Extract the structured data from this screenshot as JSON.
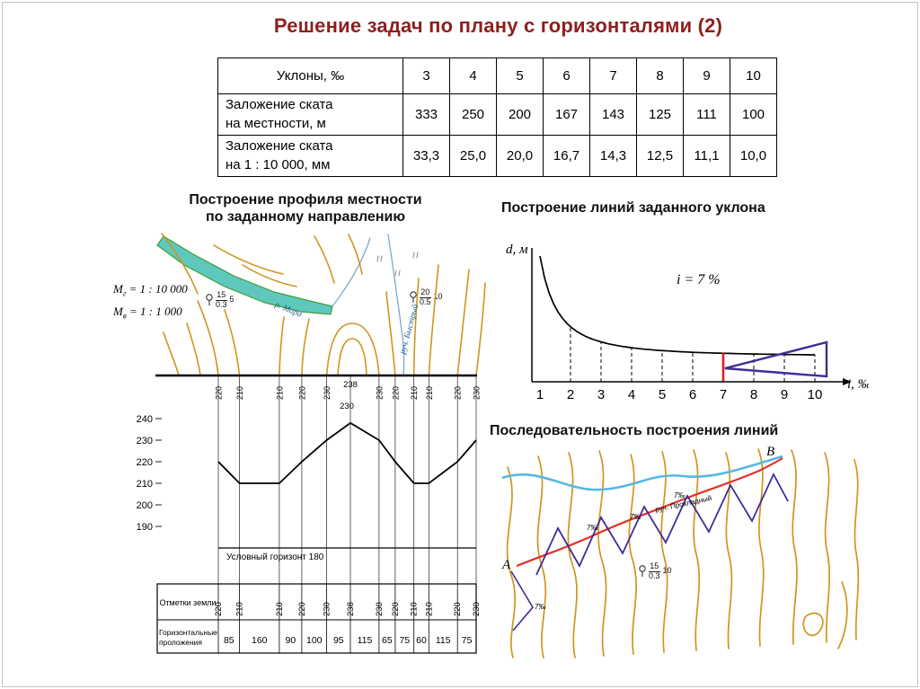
{
  "title": "Решение задач по плану с горизонталями (2)",
  "slope_table": {
    "header_label": "Уклоны, ‰",
    "columns": [
      "3",
      "4",
      "5",
      "6",
      "7",
      "8",
      "9",
      "10"
    ],
    "rows": [
      {
        "label": "Заложение ската\nна местности, м",
        "values": [
          "333",
          "250",
          "200",
          "167",
          "143",
          "125",
          "111",
          "100"
        ]
      },
      {
        "label": "Заложение ската\nна 1 : 10 000, мм",
        "values": [
          "33,3",
          "25,0",
          "20,0",
          "16,7",
          "14,3",
          "12,5",
          "11,1",
          "10,0"
        ]
      }
    ]
  },
  "left_figure": {
    "heading_line1": "Построение профиля местности",
    "heading_line2": "по заданному направлению",
    "scale1": {
      "sym": "М",
      "sub": "г",
      "val": "= 1 : 10 000"
    },
    "scale2": {
      "sym": "М",
      "sub": "в",
      "val": "= 1 : 1 000"
    },
    "river_label": "р. Мара",
    "stream_label": "руч. Быстрый",
    "forest1": {
      "num": "15",
      "den": "0.3",
      "side": "5"
    },
    "forest2": {
      "num": "20",
      "den": "0.5",
      "side": "10"
    },
    "peak_label": "238",
    "peak_lower_label": "230",
    "horizon_label": "Условный горизонт 180",
    "table": {
      "row1_label": "Отметки земли",
      "row2_label_line1": "Горизонтальные",
      "row2_label_line2": "проложения"
    }
  },
  "slope_chart": {
    "heading": "Построение линий заданного уклона",
    "ylabel": "d, м",
    "xlabel": "i, ‰",
    "annotation": "i = 7 %"
  },
  "sequence_map": {
    "heading": "Последовательность построения линий",
    "point_a": "A",
    "point_b": "B",
    "stream_label": "руч. Прохладный",
    "slope_marks": [
      "7‰",
      "7‰",
      "7‰",
      "7‰"
    ],
    "forest": {
      "num": "15",
      "den": "0.3",
      "side": "10"
    }
  },
  "chart_data": [
    {
      "type": "table",
      "title": "Уклоны, ‰ — заложения ската",
      "categories": [
        3,
        4,
        5,
        6,
        7,
        8,
        9,
        10
      ],
      "series": [
        {
          "name": "Заложение ската на местности, м",
          "values": [
            333,
            250,
            200,
            167,
            143,
            125,
            111,
            100
          ]
        },
        {
          "name": "Заложение ската на 1 : 10 000, мм",
          "values": [
            33.3,
            25.0,
            20.0,
            16.7,
            14.3,
            12.5,
            11.1,
            10.0
          ]
        }
      ]
    },
    {
      "type": "line",
      "title": "Построение профиля местности по заданному направлению",
      "xlabel": "Горизонтальные проложения, м",
      "ylabel": "Отметки земли, м",
      "distances": [
        85,
        160,
        90,
        100,
        95,
        115,
        65,
        75,
        60,
        115,
        75
      ],
      "elevations": [
        220,
        210,
        210,
        220,
        230,
        238,
        230,
        220,
        210,
        210,
        220,
        230
      ],
      "y_ticks": [
        240,
        230,
        220,
        210,
        200,
        190
      ],
      "baseline_label": "Условный горизонт 180",
      "baseline_value": 180
    },
    {
      "type": "line",
      "title": "Построение линий заданного уклона",
      "xlabel": "i, ‰",
      "ylabel": "d, м",
      "x": [
        1,
        2,
        3,
        4,
        5,
        6,
        7,
        8,
        9,
        10
      ],
      "values": [
        100,
        50,
        33.3,
        25,
        20,
        16.7,
        14.3,
        12.5,
        11.1,
        10
      ],
      "highlight_x": 7,
      "annotation": "i = 7 %",
      "xlim": [
        0,
        11
      ],
      "grid": false
    }
  ]
}
